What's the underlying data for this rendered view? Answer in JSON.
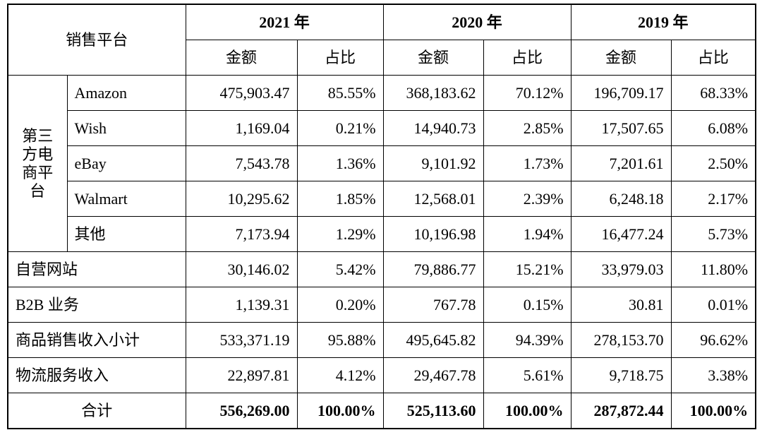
{
  "header": {
    "platform_label": "销售平台",
    "years": [
      "2021 年",
      "2020 年",
      "2019 年"
    ],
    "amount_label": "金额",
    "ratio_label": "占比"
  },
  "group_label": "第三方电商平台",
  "rows": [
    {
      "name": "Amazon",
      "v": [
        "475,903.47",
        "85.55%",
        "368,183.62",
        "70.12%",
        "196,709.17",
        "68.33%"
      ]
    },
    {
      "name": "Wish",
      "v": [
        "1,169.04",
        "0.21%",
        "14,940.73",
        "2.85%",
        "17,507.65",
        "6.08%"
      ]
    },
    {
      "name": "eBay",
      "v": [
        "7,543.78",
        "1.36%",
        "9,101.92",
        "1.73%",
        "7,201.61",
        "2.50%"
      ]
    },
    {
      "name": "Walmart",
      "v": [
        "10,295.62",
        "1.85%",
        "12,568.01",
        "2.39%",
        "6,248.18",
        "2.17%"
      ]
    },
    {
      "name": "其他",
      "v": [
        "7,173.94",
        "1.29%",
        "10,196.98",
        "1.94%",
        "16,477.24",
        "5.73%"
      ]
    },
    {
      "name": "自营网站",
      "v": [
        "30,146.02",
        "5.42%",
        "79,886.77",
        "15.21%",
        "33,979.03",
        "11.80%"
      ]
    },
    {
      "name": "B2B 业务",
      "v": [
        "1,139.31",
        "0.20%",
        "767.78",
        "0.15%",
        "30.81",
        "0.01%"
      ]
    },
    {
      "name": "商品销售收入小计",
      "v": [
        "533,371.19",
        "95.88%",
        "495,645.82",
        "94.39%",
        "278,153.70",
        "96.62%"
      ]
    },
    {
      "name": "物流服务收入",
      "v": [
        "22,897.81",
        "4.12%",
        "29,467.78",
        "5.61%",
        "9,718.75",
        "3.38%"
      ]
    }
  ],
  "total": {
    "name": "合计",
    "v": [
      "556,269.00",
      "100.00%",
      "525,113.60",
      "100.00%",
      "287,872.44",
      "100.00%"
    ]
  }
}
